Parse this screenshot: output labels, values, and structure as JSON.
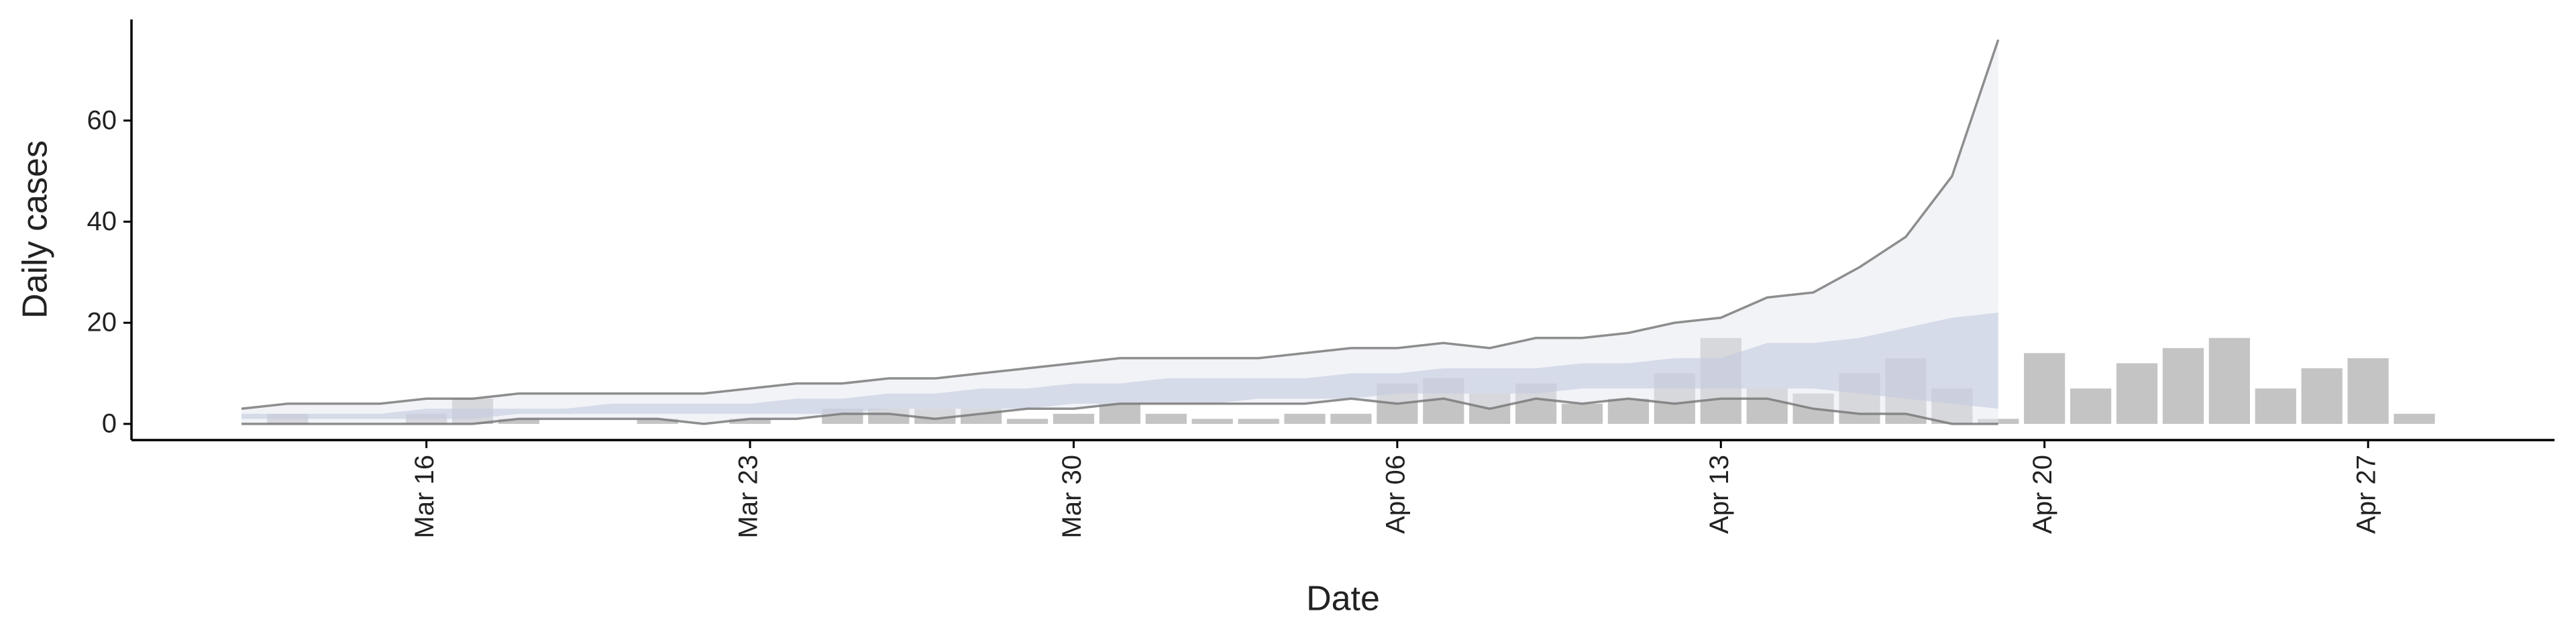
{
  "chart_data": {
    "type": "bar",
    "x_label": "Date",
    "y_label": "Daily cases",
    "x": [
      "Mar 12",
      "Mar 13",
      "Mar 14",
      "Mar 15",
      "Mar 16",
      "Mar 17",
      "Mar 18",
      "Mar 19",
      "Mar 20",
      "Mar 21",
      "Mar 22",
      "Mar 23",
      "Mar 24",
      "Mar 25",
      "Mar 26",
      "Mar 27",
      "Mar 28",
      "Mar 29",
      "Mar 30",
      "Mar 31",
      "Apr 01",
      "Apr 02",
      "Apr 03",
      "Apr 04",
      "Apr 05",
      "Apr 06",
      "Apr 07",
      "Apr 08",
      "Apr 09",
      "Apr 10",
      "Apr 11",
      "Apr 12",
      "Apr 13",
      "Apr 14",
      "Apr 15",
      "Apr 16",
      "Apr 17",
      "Apr 18",
      "Apr 19",
      "Apr 20",
      "Apr 21",
      "Apr 22",
      "Apr 23",
      "Apr 24",
      "Apr 25",
      "Apr 26",
      "Apr 27",
      "Apr 28"
    ],
    "values": [
      0,
      2,
      0,
      0,
      2,
      5,
      1,
      0,
      0,
      1,
      0,
      1,
      0,
      3,
      3,
      3,
      3,
      1,
      2,
      4,
      2,
      1,
      1,
      2,
      2,
      8,
      9,
      6,
      8,
      4,
      5,
      10,
      17,
      7,
      6,
      10,
      13,
      7,
      1,
      14,
      7,
      12,
      15,
      17,
      7,
      11,
      13,
      2
    ],
    "color": "#c4c4c4",
    "outer_band": {
      "color": "#e6e9f1",
      "lower": [
        0,
        0,
        0,
        0,
        0,
        0,
        1,
        1,
        1,
        1,
        0,
        1,
        1,
        2,
        2,
        1,
        2,
        3,
        3,
        4,
        4,
        4,
        4,
        4,
        5,
        4,
        5,
        3,
        5,
        4,
        5,
        4,
        5,
        5,
        3,
        2,
        2,
        0,
        0
      ],
      "upper": [
        3,
        4,
        4,
        4,
        5,
        5,
        6,
        6,
        6,
        6,
        6,
        7,
        8,
        8,
        9,
        9,
        10,
        11,
        12,
        13,
        13,
        13,
        13,
        14,
        15,
        15,
        16,
        15,
        17,
        17,
        18,
        20,
        21,
        25,
        26,
        31,
        37,
        49,
        76
      ]
    },
    "inner_band": {
      "color": "#c5cce0",
      "lower": [
        1,
        1,
        1,
        1,
        1,
        1,
        2,
        2,
        2,
        2,
        2,
        2,
        2,
        2,
        3,
        3,
        3,
        3,
        4,
        4,
        4,
        4,
        5,
        5,
        5,
        6,
        6,
        6,
        6,
        7,
        7,
        7,
        7,
        7,
        7,
        6,
        5,
        4,
        3
      ],
      "upper": [
        2,
        2,
        2,
        2,
        3,
        3,
        3,
        3,
        4,
        4,
        4,
        4,
        5,
        5,
        6,
        6,
        7,
        7,
        8,
        8,
        9,
        9,
        9,
        9,
        10,
        10,
        11,
        11,
        11,
        12,
        12,
        13,
        13,
        16,
        16,
        17,
        19,
        21,
        22
      ]
    },
    "line_color": "#7a7a7a",
    "xticks": [
      "Mar 16",
      "Mar 23",
      "Mar 30",
      "Apr 06",
      "Apr 13",
      "Apr 20",
      "Apr 27"
    ],
    "ylim": [
      -3.2,
      80
    ],
    "yticks": [
      0,
      20,
      40,
      60
    ]
  }
}
